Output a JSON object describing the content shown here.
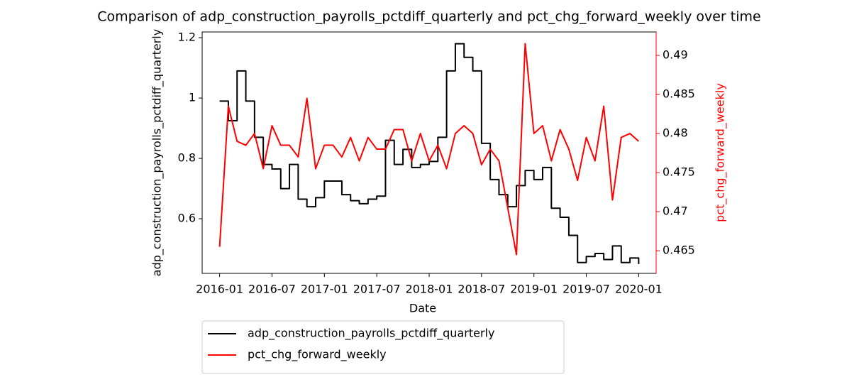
{
  "chart_data": {
    "type": "line",
    "title": "Comparison of adp_construction_payrolls_pctdiff_quarterly and pct_chg_forward_weekly over time",
    "xlabel": "Date",
    "ylabel": "adp_construction_payrolls_pctdiff_quarterly",
    "y2label": "pct_chg_forward_weekly",
    "x": [
      "2016-01",
      "2016-02",
      "2016-03",
      "2016-04",
      "2016-05",
      "2016-06",
      "2016-07",
      "2016-08",
      "2016-09",
      "2016-10",
      "2016-11",
      "2016-12",
      "2017-01",
      "2017-02",
      "2017-03",
      "2017-04",
      "2017-05",
      "2017-06",
      "2017-07",
      "2017-08",
      "2017-09",
      "2017-10",
      "2017-11",
      "2017-12",
      "2018-01",
      "2018-02",
      "2018-03",
      "2018-04",
      "2018-05",
      "2018-06",
      "2018-07",
      "2018-08",
      "2018-09",
      "2018-10",
      "2018-11",
      "2018-12",
      "2019-01",
      "2019-02",
      "2019-03",
      "2019-04",
      "2019-05",
      "2019-06",
      "2019-07",
      "2019-08",
      "2019-09",
      "2019-10",
      "2019-11",
      "2019-12",
      "2020-01"
    ],
    "series": [
      {
        "name": "adp_construction_payrolls_pctdiff_quarterly",
        "color": "#000000",
        "drawstyle": "steps-post",
        "values": [
          0.99,
          0.925,
          1.09,
          0.99,
          0.87,
          0.78,
          0.765,
          0.7,
          0.78,
          0.665,
          0.64,
          0.67,
          0.725,
          0.725,
          0.68,
          0.66,
          0.65,
          0.665,
          0.675,
          0.86,
          0.78,
          0.83,
          0.77,
          0.78,
          0.79,
          0.87,
          1.09,
          1.18,
          1.135,
          1.09,
          0.85,
          0.73,
          0.68,
          0.64,
          0.71,
          0.76,
          0.73,
          0.77,
          0.635,
          0.605,
          0.545,
          0.455,
          0.475,
          0.485,
          0.465,
          0.51,
          0.455,
          0.47,
          0.45
        ]
      },
      {
        "name": "pct_chg_forward_weekly",
        "color": "#ff0000",
        "axis": "y2",
        "values": [
          0.4655,
          0.4835,
          0.479,
          0.4785,
          0.48,
          0.4755,
          0.481,
          0.4785,
          0.4785,
          0.477,
          0.4845,
          0.4755,
          0.4785,
          0.4785,
          0.477,
          0.4795,
          0.4765,
          0.4795,
          0.478,
          0.478,
          0.4805,
          0.4805,
          0.4765,
          0.48,
          0.4765,
          0.4785,
          0.4755,
          0.48,
          0.481,
          0.48,
          0.476,
          0.478,
          0.4765,
          0.4705,
          0.4645,
          0.4915,
          0.48,
          0.481,
          0.4765,
          0.4805,
          0.478,
          0.474,
          0.4795,
          0.4765,
          0.4835,
          0.4715,
          0.4795,
          0.48,
          0.479
        ]
      }
    ],
    "xlim": [
      "2015-11",
      "2020-03"
    ],
    "xticks": [
      "2016-01",
      "2016-07",
      "2017-01",
      "2017-07",
      "2018-01",
      "2018-07",
      "2019-01",
      "2019-07",
      "2020-01"
    ],
    "ylim": [
      0.419,
      1.219
    ],
    "yticks": [
      0.6,
      0.8,
      1.0,
      1.2
    ],
    "y2lim": [
      0.4621,
      0.493
    ],
    "y2ticks": [
      0.465,
      0.47,
      0.475,
      0.48,
      0.485,
      0.49
    ],
    "y2color": "#ff0000",
    "legend": "below"
  }
}
